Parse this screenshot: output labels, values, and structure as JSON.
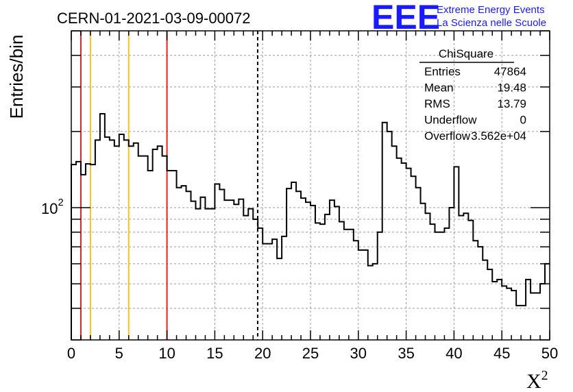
{
  "chart_data": {
    "type": "histogram",
    "title": "CERN-01-2021-03-09-00072",
    "xlabel": "X",
    "xlabel_superscript": "2",
    "ylabel": "Entries/bin",
    "xlim": [
      0,
      50
    ],
    "ylim": [
      30,
      500
    ],
    "yscale": "log",
    "grid": true,
    "bin_width": 0.5,
    "x_ticks": [
      "0",
      "5",
      "10",
      "15",
      "20",
      "25",
      "30",
      "35",
      "40",
      "45",
      "50"
    ],
    "y_tick_label": {
      "base": "10",
      "exponent": "2",
      "value": 100
    },
    "values": [
      148,
      152,
      135,
      149,
      148,
      185,
      235,
      190,
      185,
      175,
      195,
      185,
      175,
      180,
      160,
      160,
      140,
      170,
      175,
      160,
      140,
      140,
      120,
      122,
      116,
      106,
      99,
      110,
      99,
      99,
      124,
      118,
      107,
      107,
      103,
      108,
      93,
      99,
      90,
      83,
      72,
      72,
      75,
      63,
      77,
      119,
      126,
      116,
      109,
      105,
      102,
      87,
      86,
      94,
      107,
      101,
      88,
      82,
      82,
      74,
      68,
      68,
      59,
      60,
      80,
      217,
      200,
      175,
      157,
      150,
      143,
      133,
      120,
      104,
      95,
      86,
      80,
      80,
      83,
      100,
      145,
      93,
      95,
      89,
      74,
      70,
      62,
      57,
      51,
      52,
      49,
      48,
      47,
      41,
      41,
      52,
      46,
      46,
      50,
      60
    ],
    "vertical_lines": [
      {
        "x": 1.0,
        "color": "#e8201f",
        "style": "solid"
      },
      {
        "x": 2.0,
        "color": "#f5c518",
        "style": "solid"
      },
      {
        "x": 6.0,
        "color": "#f5c518",
        "style": "solid"
      },
      {
        "x": 10.0,
        "color": "#e8201f",
        "style": "solid"
      },
      {
        "x": 19.48,
        "color": "#000000",
        "style": "dashed"
      }
    ],
    "stats_box": {
      "name": "ChiSquare",
      "rows": [
        {
          "label": "Entries",
          "value": "47864"
        },
        {
          "label": "Mean",
          "value": "19.48"
        },
        {
          "label": "RMS",
          "value": "13.79"
        },
        {
          "label": "Underflow",
          "value": "0"
        },
        {
          "label": "Overflow",
          "value": "3.562e+04"
        }
      ]
    }
  },
  "logo": {
    "text": "EEE",
    "line1": "Extreme Energy Events",
    "line2": "La Scienza nelle Scuole"
  }
}
